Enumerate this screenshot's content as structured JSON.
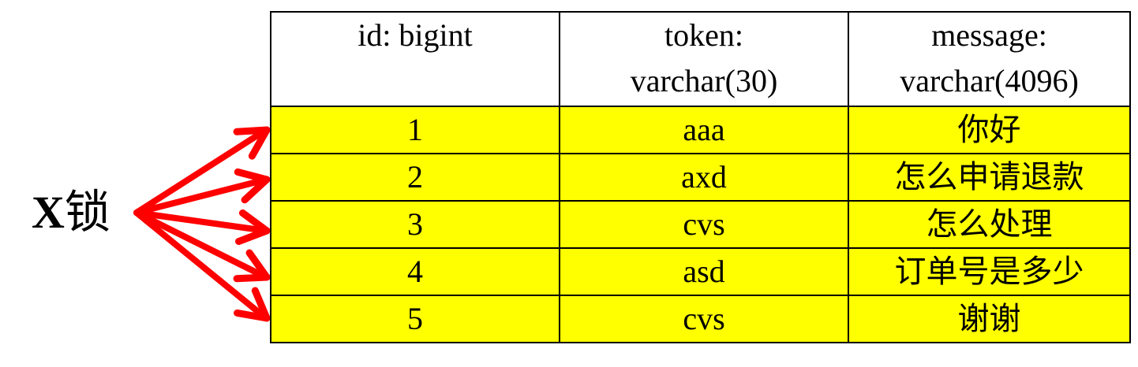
{
  "lock_label": {
    "x": "X",
    "text": "锁"
  },
  "colors": {
    "arrow": "#ff0000",
    "row_highlight": "#ffff00"
  },
  "table": {
    "headers": [
      {
        "line1": "id: bigint",
        "line2": ""
      },
      {
        "line1": "token:",
        "line2": "varchar(30)"
      },
      {
        "line1": "message:",
        "line2": "varchar(4096)"
      }
    ],
    "rows": [
      [
        "1",
        "aaa",
        "你好"
      ],
      [
        "2",
        "axd",
        "怎么申请退款"
      ],
      [
        "3",
        "cvs",
        "怎么处理"
      ],
      [
        "4",
        "asd",
        "订单号是多少"
      ],
      [
        "5",
        "cvs",
        "谢谢"
      ]
    ]
  }
}
